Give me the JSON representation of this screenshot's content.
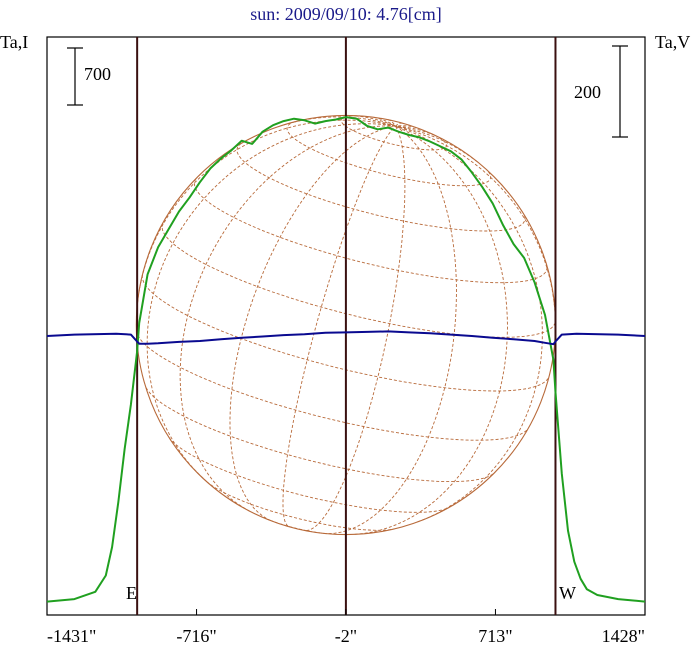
{
  "title": "sun: 2009/09/10: 4.76[cm]",
  "left_axis_label": "Ta,I",
  "right_axis_label": "Ta,V",
  "scale_bar_left": "700",
  "scale_bar_right": "200",
  "limb_markers": {
    "east": "E",
    "west": "W"
  },
  "colors": {
    "background": "#ffffff",
    "frame": "#000000",
    "title": "#1a1a8a",
    "intensity": "#20a020",
    "polarization": "#0a0a90",
    "limb_lines": "#3a1010",
    "grid": "#b86a3a"
  },
  "chart_data": {
    "type": "line",
    "title": "sun: 2009/09/10: 4.76[cm]",
    "x_unit": "arcsec",
    "x_ticks": [
      -1431,
      -716,
      -2,
      713,
      1428
    ],
    "x_tick_labels": [
      "-1431\"",
      "-716\"",
      "-2\"",
      "713\"",
      "1428\""
    ],
    "xlim": [
      -1431,
      1428
    ],
    "limb_positions": [
      -1000,
      -2,
      1000
    ],
    "series": [
      {
        "name": "Ta,I",
        "x": [
          -1431,
          -1300,
          -1200,
          -1150,
          -1120,
          -1090,
          -1060,
          -1030,
          -1000,
          -990,
          -950,
          -900,
          -850,
          -800,
          -750,
          -700,
          -650,
          -600,
          -550,
          -500,
          -450,
          -400,
          -350,
          -300,
          -250,
          -200,
          -150,
          -100,
          -50,
          -2,
          50,
          100,
          150,
          200,
          250,
          300,
          350,
          400,
          450,
          500,
          550,
          600,
          650,
          700,
          750,
          800,
          850,
          900,
          950,
          990,
          1000,
          1030,
          1060,
          1090,
          1120,
          1150,
          1200,
          1300,
          1428
        ],
        "y": [
          30,
          60,
          150,
          350,
          700,
          1250,
          1900,
          2450,
          3100,
          3450,
          4050,
          4380,
          4600,
          4820,
          4990,
          5180,
          5350,
          5470,
          5570,
          5690,
          5650,
          5800,
          5880,
          5930,
          5960,
          5940,
          5900,
          5930,
          5950,
          5980,
          5960,
          5870,
          5830,
          5850,
          5800,
          5760,
          5730,
          5680,
          5620,
          5560,
          5460,
          5300,
          5120,
          4920,
          4650,
          4420,
          4250,
          3950,
          3550,
          3000,
          2600,
          1600,
          900,
          520,
          310,
          180,
          110,
          60,
          30
        ]
      },
      {
        "name": "Ta,V",
        "x": [
          -1431,
          -1300,
          -1100,
          -1030,
          -1000,
          -990,
          -950,
          -900,
          -800,
          -700,
          -600,
          -500,
          -400,
          -300,
          -200,
          -100,
          -2,
          100,
          200,
          300,
          400,
          500,
          600,
          700,
          800,
          900,
          950,
          990,
          1000,
          1030,
          1100,
          1300,
          1428
        ],
        "y": [
          0,
          3,
          5,
          3,
          -12,
          -17,
          -17,
          -16,
          -13,
          -11,
          -7,
          -4,
          -1,
          2,
          4,
          7,
          8,
          9,
          10,
          8,
          6,
          3,
          0,
          -4,
          -7,
          -11,
          -15,
          -18,
          -12,
          3,
          5,
          3,
          0
        ]
      }
    ]
  }
}
